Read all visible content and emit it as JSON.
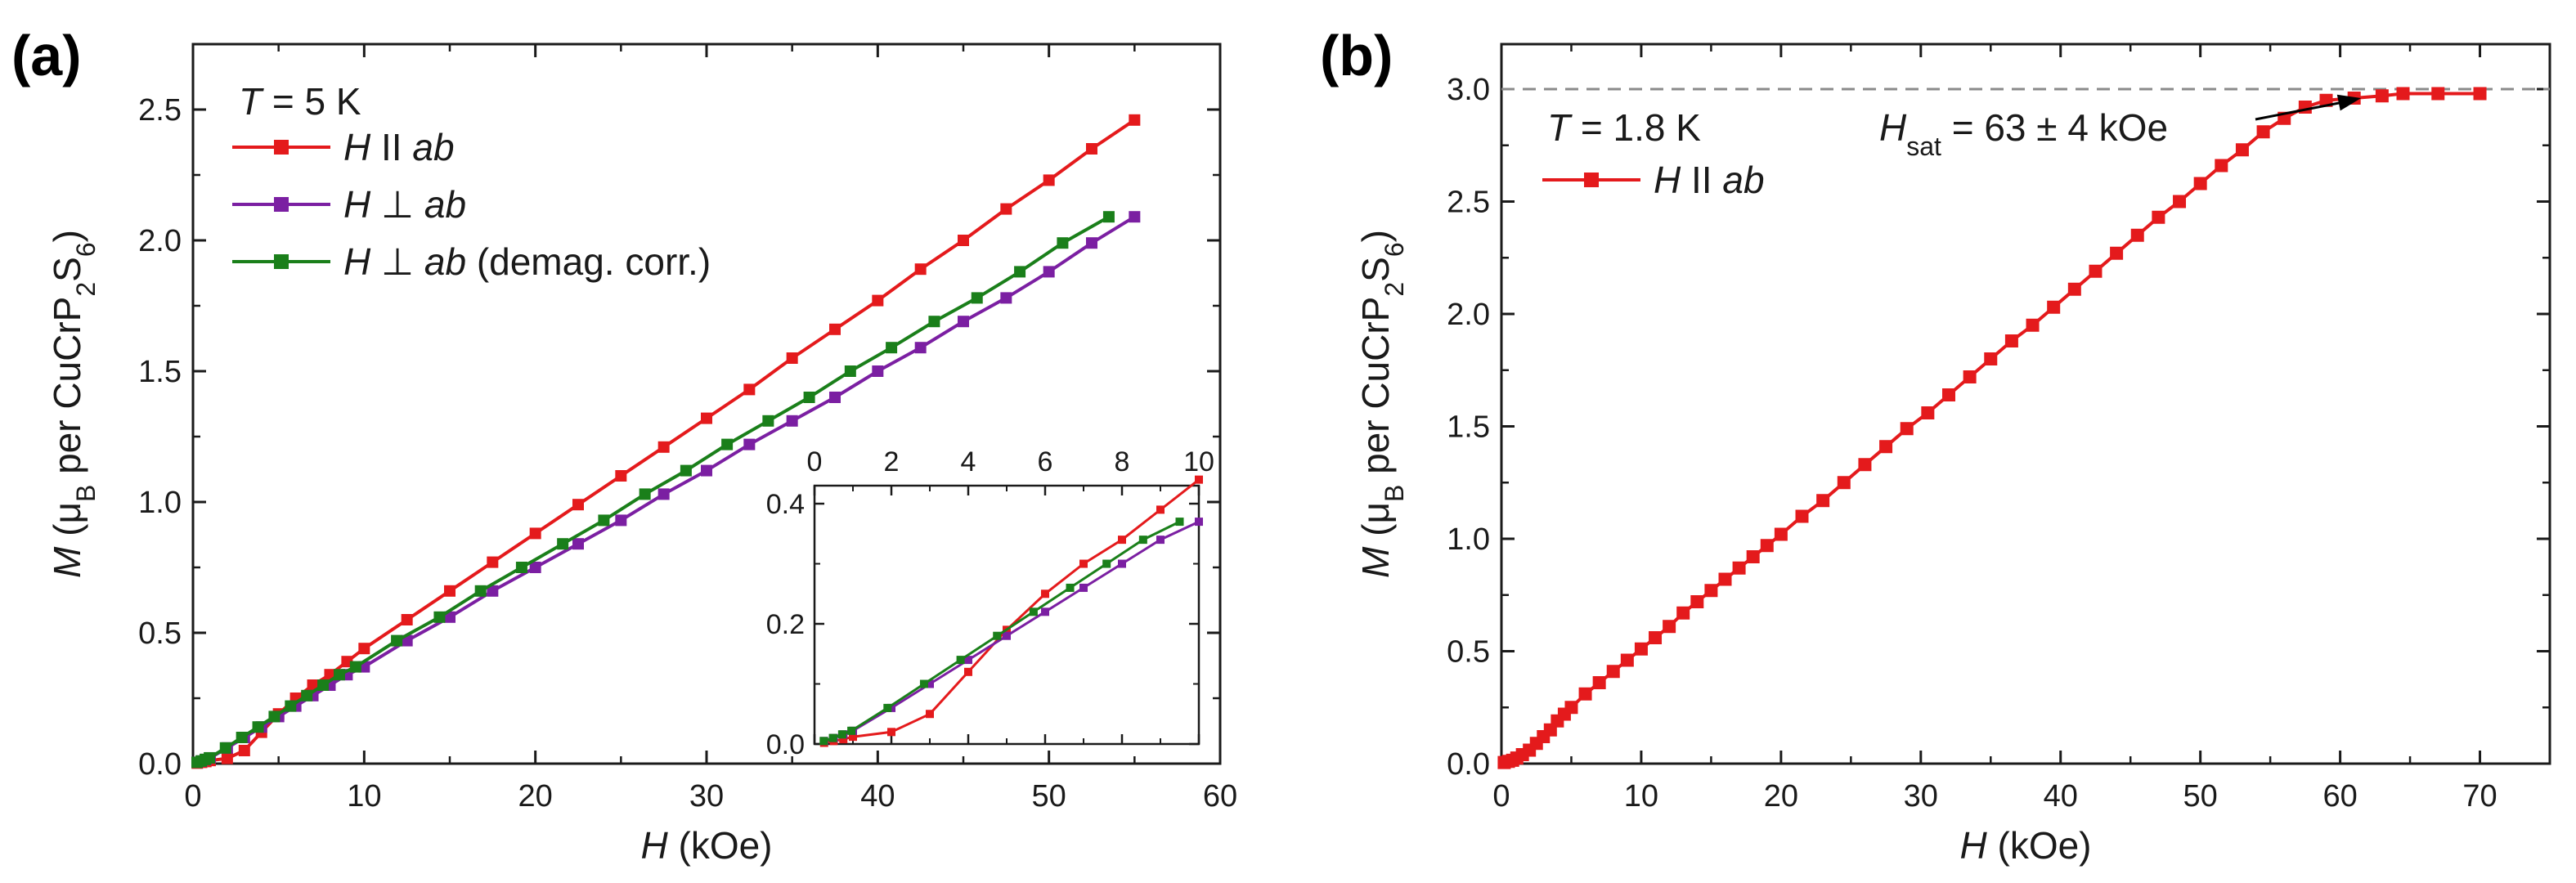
{
  "chart_data": [
    {
      "panel_label": "(a)",
      "type": "line",
      "xlabel": {
        "var": "H",
        "unit": " (kOe)"
      },
      "ylabel": {
        "var": "M",
        "text": " (μB per CuCrP2S6)"
      },
      "xlim": [
        0,
        60
      ],
      "ylim": [
        0,
        2.75
      ],
      "xticks": [
        0,
        10,
        20,
        30,
        40,
        50,
        60
      ],
      "yticks": [
        0.0,
        0.5,
        1.0,
        1.5,
        2.0,
        2.5
      ],
      "xtick_labels": [
        "0",
        "10",
        "20",
        "30",
        "40",
        "50",
        "60"
      ],
      "ytick_labels": [
        "0.0",
        "0.5",
        "1.0",
        "1.5",
        "2.0",
        "2.5"
      ],
      "annotation": {
        "var": "T",
        "text": " = 5 K"
      },
      "legend_position": "top-left",
      "series": [
        {
          "name": "H ∥ ab",
          "name_var": "H",
          "name_op": "II",
          "name_rest": "ab",
          "name_extra": "",
          "color": "#e41a1c",
          "x": [
            0.25,
            0.5,
            0.75,
            1.0,
            2.0,
            3.0,
            4.0,
            5.0,
            6.0,
            7.0,
            8.0,
            9.0,
            10.0,
            12.5,
            15.0,
            17.5,
            20.0,
            22.5,
            25.0,
            27.5,
            30.0,
            32.5,
            35.0,
            37.5,
            40.0,
            42.5,
            45.0,
            47.5,
            50.0,
            52.5,
            55.0
          ],
          "y": [
            0.002,
            0.005,
            0.008,
            0.012,
            0.02,
            0.05,
            0.12,
            0.19,
            0.25,
            0.3,
            0.34,
            0.39,
            0.44,
            0.55,
            0.66,
            0.77,
            0.88,
            0.99,
            1.1,
            1.21,
            1.32,
            1.43,
            1.55,
            1.66,
            1.77,
            1.89,
            2.0,
            2.12,
            2.23,
            2.35,
            2.46
          ]
        },
        {
          "name": "H ⊥ ab",
          "name_var": "H",
          "name_op": "⊥",
          "name_rest": "ab",
          "name_extra": "",
          "color": "#7b1fa2",
          "x": [
            0.25,
            0.5,
            0.75,
            1.0,
            2.0,
            3.0,
            4.0,
            5.0,
            6.0,
            7.0,
            8.0,
            9.0,
            10.0,
            12.5,
            15.0,
            17.5,
            20.0,
            22.5,
            25.0,
            27.5,
            30.0,
            32.5,
            35.0,
            37.5,
            40.0,
            42.5,
            45.0,
            47.5,
            50.0,
            52.5,
            55.0
          ],
          "y": [
            0.005,
            0.01,
            0.016,
            0.022,
            0.06,
            0.1,
            0.14,
            0.18,
            0.22,
            0.26,
            0.3,
            0.34,
            0.37,
            0.47,
            0.56,
            0.66,
            0.75,
            0.84,
            0.93,
            1.03,
            1.12,
            1.22,
            1.31,
            1.4,
            1.5,
            1.59,
            1.69,
            1.78,
            1.88,
            1.99,
            2.09
          ]
        },
        {
          "name": "H ⊥ ab (demag. corr.)",
          "name_var": "H",
          "name_op": "⊥",
          "name_rest": "ab",
          "name_extra": " (demag. corr.)",
          "color": "#1a7f1a",
          "x": [
            0.24,
            0.48,
            0.72,
            0.96,
            1.9,
            2.85,
            3.8,
            4.75,
            5.7,
            6.65,
            7.6,
            8.55,
            9.5,
            11.9,
            14.4,
            16.8,
            19.2,
            21.6,
            24.0,
            26.4,
            28.8,
            31.2,
            33.6,
            36.0,
            38.4,
            40.8,
            43.3,
            45.8,
            48.3,
            50.8,
            53.5
          ],
          "y": [
            0.005,
            0.01,
            0.016,
            0.022,
            0.06,
            0.1,
            0.14,
            0.18,
            0.22,
            0.26,
            0.3,
            0.34,
            0.37,
            0.47,
            0.56,
            0.66,
            0.75,
            0.84,
            0.93,
            1.03,
            1.12,
            1.22,
            1.31,
            1.4,
            1.5,
            1.59,
            1.69,
            1.78,
            1.88,
            1.99,
            2.09
          ]
        }
      ],
      "inset": {
        "xlim": [
          0,
          10
        ],
        "ylim": [
          0,
          0.43
        ],
        "xticks": [
          0,
          2,
          4,
          6,
          8,
          10
        ],
        "yticks": [
          0.0,
          0.2,
          0.4
        ],
        "xtick_labels": [
          "0",
          "2",
          "4",
          "6",
          "8",
          "10"
        ],
        "ytick_labels": [
          "0.0",
          "0.2",
          "0.4"
        ],
        "x_axis_position": "top"
      }
    },
    {
      "panel_label": "(b)",
      "type": "line",
      "xlabel": {
        "var": "H",
        "unit": " (kOe)"
      },
      "ylabel": {
        "var": "M",
        "text": " (μB per CuCrP2S6)"
      },
      "xlim": [
        0,
        75
      ],
      "ylim": [
        0,
        3.2
      ],
      "xticks": [
        0,
        10,
        20,
        30,
        40,
        50,
        60,
        70
      ],
      "yticks": [
        0.0,
        0.5,
        1.0,
        1.5,
        2.0,
        2.5,
        3.0
      ],
      "xtick_labels": [
        "0",
        "10",
        "20",
        "30",
        "40",
        "50",
        "60",
        "70"
      ],
      "ytick_labels": [
        "0.0",
        "0.5",
        "1.0",
        "1.5",
        "2.0",
        "2.5",
        "3.0"
      ],
      "annotation": {
        "var": "T",
        "text": " = 1.8 K"
      },
      "saturation_line": 3.0,
      "saturation_label": {
        "var": "H",
        "sub": "sat",
        "text": " = 63 ± 4 kOe",
        "arrow_to_x": 61.5,
        "arrow_to_y": 2.96
      },
      "series": [
        {
          "name": "H ∥ ab",
          "name_var": "H",
          "name_op": "II",
          "name_rest": "ab",
          "color": "#e41a1c",
          "x": [
            0.2,
            0.5,
            0.8,
            1.1,
            1.5,
            2.0,
            2.5,
            3.0,
            3.5,
            4.0,
            4.5,
            5.0,
            6.0,
            7.0,
            8.0,
            9.0,
            10.0,
            11.0,
            12.0,
            13.0,
            14.0,
            15.0,
            16.0,
            17.0,
            18.0,
            19.0,
            20.0,
            21.5,
            23.0,
            24.5,
            26.0,
            27.5,
            29.0,
            30.5,
            32.0,
            33.5,
            35.0,
            36.5,
            38.0,
            39.5,
            41.0,
            42.5,
            44.0,
            45.5,
            47.0,
            48.5,
            50.0,
            51.5,
            53.0,
            54.5,
            56.0,
            57.5,
            59.0,
            61.0,
            63.0,
            64.5,
            67.0,
            70.0
          ],
          "y": [
            0.005,
            0.01,
            0.015,
            0.025,
            0.04,
            0.06,
            0.09,
            0.12,
            0.15,
            0.19,
            0.22,
            0.25,
            0.31,
            0.36,
            0.41,
            0.46,
            0.51,
            0.56,
            0.61,
            0.67,
            0.72,
            0.77,
            0.82,
            0.87,
            0.92,
            0.97,
            1.02,
            1.1,
            1.17,
            1.25,
            1.33,
            1.41,
            1.49,
            1.56,
            1.64,
            1.72,
            1.8,
            1.88,
            1.95,
            2.03,
            2.11,
            2.19,
            2.27,
            2.35,
            2.43,
            2.5,
            2.58,
            2.66,
            2.73,
            2.81,
            2.87,
            2.92,
            2.95,
            2.96,
            2.97,
            2.98,
            2.98,
            2.98
          ]
        }
      ]
    }
  ]
}
